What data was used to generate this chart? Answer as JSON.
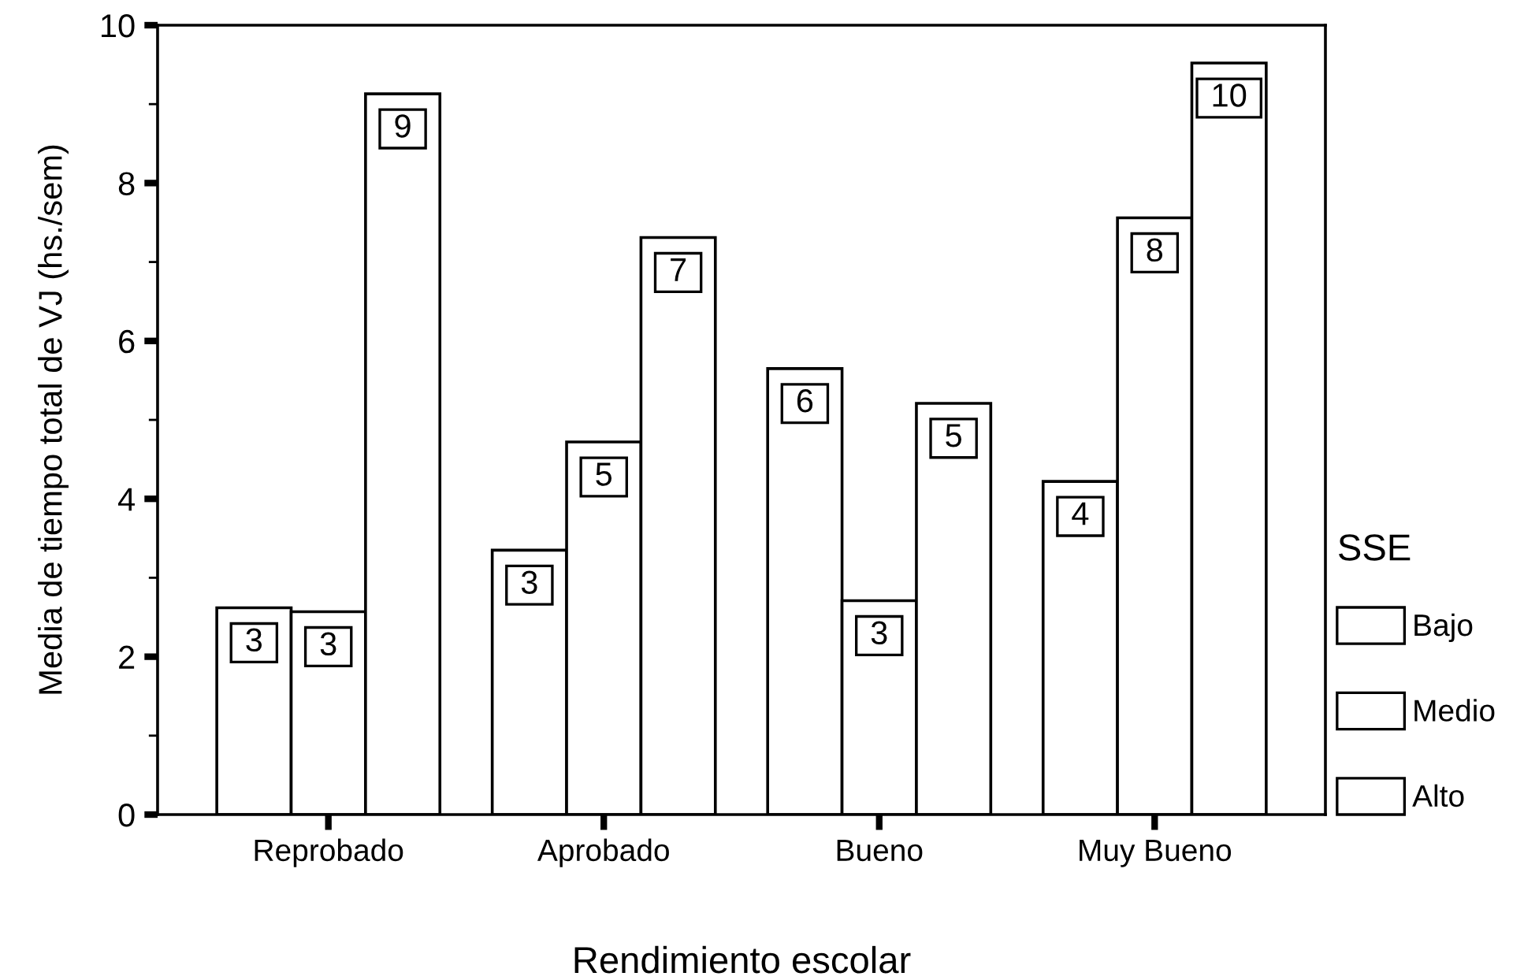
{
  "chart_data": {
    "type": "bar",
    "xlabel": "Rendimiento escolar",
    "ylabel": "Media de tiempo total de VJ (hs./sem)",
    "legend_title": "SSE",
    "categories": [
      "Reprobado",
      "Aprobado",
      "Bueno",
      "Muy Bueno"
    ],
    "series": [
      {
        "name": "Bajo",
        "color": "#ffffff",
        "values": [
          2.62,
          3.35,
          5.65,
          4.22
        ],
        "value_labels": [
          "3",
          "3",
          "6",
          "4"
        ]
      },
      {
        "name": "Medio",
        "color": "#ffffff",
        "values": [
          2.57,
          4.72,
          2.71,
          7.56
        ],
        "value_labels": [
          "3",
          "5",
          "3",
          "8"
        ]
      },
      {
        "name": "Alto",
        "color": "#ffffff",
        "values": [
          9.13,
          7.31,
          5.21,
          9.52
        ],
        "value_labels": [
          "9",
          "7",
          "5",
          "10"
        ]
      }
    ],
    "ylim": [
      0,
      10
    ],
    "yticks": [
      0,
      {
        "value": 1,
        "label": null
      },
      2,
      {
        "value": 3,
        "label": null
      },
      4,
      {
        "value": 5,
        "label": null
      },
      6,
      {
        "value": 7,
        "label": null
      },
      8,
      {
        "value": 9,
        "label": null
      },
      10
    ],
    "grid": false,
    "legend": "bottom right"
  }
}
